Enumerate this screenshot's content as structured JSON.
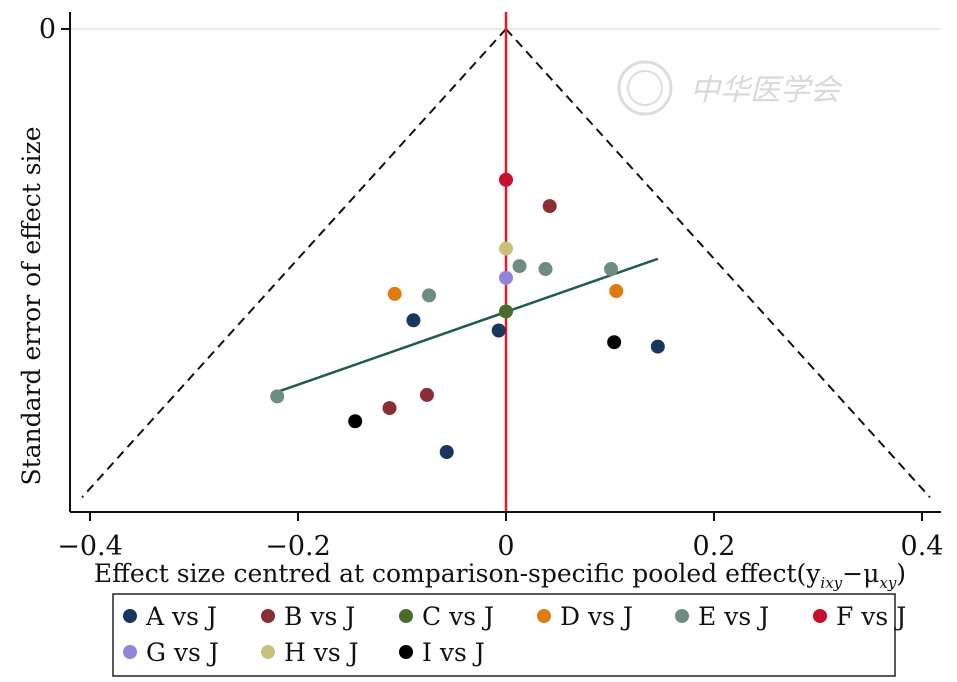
{
  "chart_data": {
    "type": "scatter",
    "xlabel": "Effect size centred at comparison-specific pooled effect(y",
    "xlabel_sub1": "ixy",
    "xlabel_mid": "−μ",
    "xlabel_sub2": "xy",
    "xlabel_end": ")",
    "ylabel": "Standard error of effect size",
    "xlim": [
      -0.4,
      0.4
    ],
    "ylim_reversed": [
      0,
      0.33
    ],
    "x_ticks": [
      -0.4,
      -0.2,
      0,
      0.2,
      0.4
    ],
    "x_tick_labels": [
      "−0.4",
      "−0.2",
      "0",
      "0.2",
      "0.4"
    ],
    "y_ticks": [
      0
    ],
    "y_tick_labels": [
      "0"
    ],
    "funnel_se_max": 0.32,
    "zero_line_color": "#e8191f",
    "funnel_line_style": "dashed",
    "regression_line": {
      "color": "#1f5c4c",
      "x": [
        -0.22,
        0.146
      ],
      "y": [
        0.248,
        0.157
      ]
    },
    "series": [
      {
        "name": "A vs J",
        "color": "#17375e",
        "points": [
          [
            -0.089,
            0.199
          ],
          [
            -0.007,
            0.206
          ],
          [
            0.146,
            0.217
          ],
          [
            -0.057,
            0.289
          ]
        ]
      },
      {
        "name": "B vs J",
        "color": "#8b2d35",
        "points": [
          [
            0.042,
            0.121
          ],
          [
            -0.112,
            0.259
          ],
          [
            -0.076,
            0.25
          ]
        ]
      },
      {
        "name": "C vs J",
        "color": "#4a6b2a",
        "points": [
          [
            0,
            0.193
          ]
        ]
      },
      {
        "name": "D vs J",
        "color": "#e07b12",
        "points": [
          [
            -0.107,
            0.181
          ],
          [
            0.106,
            0.179
          ]
        ]
      },
      {
        "name": "E vs J",
        "color": "#6f8c80",
        "points": [
          [
            0.013,
            0.162
          ],
          [
            0.038,
            0.164
          ],
          [
            0.101,
            0.164
          ],
          [
            -0.074,
            0.182
          ],
          [
            -0.22,
            0.251
          ]
        ]
      },
      {
        "name": "F vs J",
        "color": "#c8102e",
        "points": [
          [
            0,
            0.103
          ]
        ]
      },
      {
        "name": "G vs J",
        "color": "#9085d8",
        "points": [
          [
            0,
            0.17
          ]
        ]
      },
      {
        "name": "H vs J",
        "color": "#c9c07a",
        "points": [
          [
            0,
            0.15
          ]
        ]
      },
      {
        "name": "I vs J",
        "color": "#000000",
        "points": [
          [
            0.104,
            0.214
          ],
          [
            -0.145,
            0.268
          ]
        ]
      }
    ],
    "legend_placement": "bottom"
  },
  "watermark": {
    "text": "中华医学会"
  }
}
